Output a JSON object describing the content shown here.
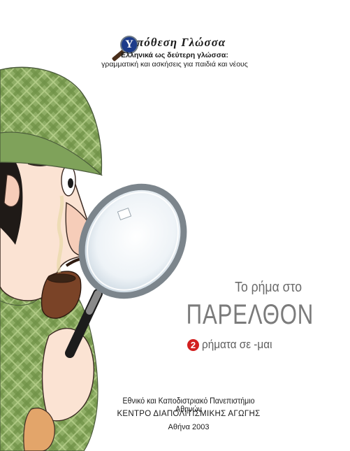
{
  "logo": {
    "lens_letter": "Υ",
    "title": "πόθεση Γλώσσα",
    "subtitle_line1": "Ελληνικά ως δεύτερη γλώσσα:",
    "subtitle_line2": "γραμματική και ασκήσεις για παιδιά και νέους"
  },
  "cover": {
    "subtitle": "Το ρήμα στο",
    "title": "ΠΑΡΕΛΘΟΝ",
    "chapter_number": "2",
    "chapter_label": "ρήματα σε -μαι"
  },
  "publisher": {
    "university": "Εθνικό και Καποδιστριακό Πανεπιστήμιο Αθηνών",
    "center": "ΚΕΝΤΡΟ ΔΙΑΠΟΛΙΤΙΣΜΙΚΗΣ ΑΓΩΓΗΣ",
    "place_year": "Αθήνα 2003"
  },
  "colors": {
    "cap_green": "#7fa25a",
    "badge_red": "#d21f1f",
    "logo_blue": "#1c3b8a"
  }
}
